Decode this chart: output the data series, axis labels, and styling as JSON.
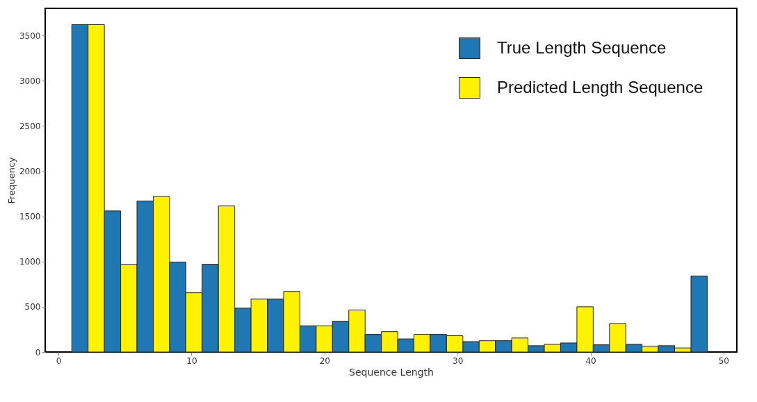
{
  "chart_data": {
    "type": "histogram",
    "xlabel": "Sequence Length",
    "ylabel": "Frequency",
    "bins": [
      1,
      3.45,
      5.9,
      8.35,
      10.8,
      13.25,
      15.7,
      18.15,
      20.6,
      23.05,
      25.5,
      27.95,
      30.4,
      32.85,
      35.3,
      37.75,
      40.2,
      42.65,
      45.1,
      47.55,
      50
    ],
    "series": [
      {
        "name": "True Length Sequence",
        "color": "#1f77b4",
        "values": [
          3620,
          1560,
          1670,
          995,
          970,
          485,
          585,
          290,
          340,
          195,
          145,
          195,
          115,
          125,
          70,
          100,
          80,
          85,
          70,
          840
        ]
      },
      {
        "name": "Predicted  Length Sequence",
        "color": "#fff200",
        "values": [
          3620,
          970,
          1720,
          655,
          1615,
          585,
          670,
          290,
          465,
          225,
          195,
          180,
          125,
          155,
          85,
          500,
          315,
          65,
          45,
          0
        ]
      }
    ],
    "xlim": [
      -1,
      51
    ],
    "ylim": [
      0,
      3800
    ],
    "xticks": [
      0,
      10,
      20,
      30,
      40,
      50
    ],
    "yticks": [
      0,
      500,
      1000,
      1500,
      2000,
      2500,
      3000,
      3500
    ],
    "legend": "top right",
    "grid": false
  }
}
